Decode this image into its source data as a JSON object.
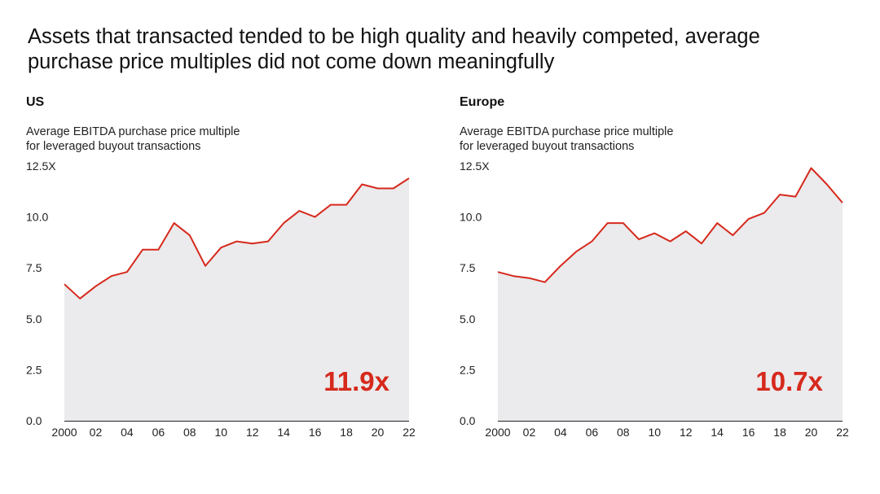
{
  "headline": {
    "line1": "Assets that transacted tended to be high quality and heavily competed, average",
    "line2": "purchase price multiples did not come down meaningfully"
  },
  "colors": {
    "line": "#d6291c",
    "area": "#ebeaec",
    "highlight": "#d6291c",
    "axis": "#222222"
  },
  "panels": [
    {
      "region": "US",
      "subtitle_line1": "Average EBITDA purchase price multiple",
      "subtitle_line2": "for leveraged buyout transactions",
      "highlight": "11.9x"
    },
    {
      "region": "Europe",
      "subtitle_line1": "Average EBITDA purchase price multiple",
      "subtitle_line2": "for leveraged buyout transactions",
      "highlight": "10.7x"
    }
  ],
  "chart_data": [
    {
      "type": "area",
      "title": "US",
      "subtitle": "Average EBITDA purchase price multiple for leveraged buyout transactions",
      "x": [
        2000,
        2001,
        2002,
        2003,
        2004,
        2005,
        2006,
        2007,
        2008,
        2009,
        2010,
        2011,
        2012,
        2013,
        2014,
        2015,
        2016,
        2017,
        2018,
        2019,
        2020,
        2021,
        2022
      ],
      "values": [
        6.7,
        6.0,
        6.6,
        7.1,
        7.3,
        8.4,
        8.4,
        9.7,
        9.1,
        7.6,
        8.5,
        8.8,
        8.7,
        8.8,
        9.7,
        10.3,
        10.0,
        10.6,
        10.6,
        11.6,
        11.4,
        11.4,
        11.9
      ],
      "ylim": [
        0,
        12.5
      ],
      "y_ticks": [
        "12.5X",
        "10.0",
        "7.5",
        "5.0",
        "2.5",
        "0.0"
      ],
      "x_ticks": [
        "2000",
        "02",
        "04",
        "06",
        "08",
        "10",
        "12",
        "14",
        "16",
        "18",
        "20",
        "22"
      ],
      "annotation": "11.9x"
    },
    {
      "type": "area",
      "title": "Europe",
      "subtitle": "Average EBITDA purchase price multiple for leveraged buyout transactions",
      "x": [
        2000,
        2001,
        2002,
        2003,
        2004,
        2005,
        2006,
        2007,
        2008,
        2009,
        2010,
        2011,
        2012,
        2013,
        2014,
        2015,
        2016,
        2017,
        2018,
        2019,
        2020,
        2021,
        2022
      ],
      "values": [
        7.3,
        7.1,
        7.0,
        6.8,
        7.6,
        8.3,
        8.8,
        9.7,
        9.7,
        8.9,
        9.2,
        8.8,
        9.3,
        8.7,
        9.7,
        9.1,
        9.9,
        10.2,
        11.1,
        11.0,
        12.4,
        11.6,
        10.7
      ],
      "ylim": [
        0,
        12.5
      ],
      "y_ticks": [
        "12.5X",
        "10.0",
        "7.5",
        "5.0",
        "2.5",
        "0.0"
      ],
      "x_ticks": [
        "2000",
        "02",
        "04",
        "06",
        "08",
        "10",
        "12",
        "14",
        "16",
        "18",
        "20",
        "22"
      ],
      "annotation": "10.7x"
    }
  ]
}
